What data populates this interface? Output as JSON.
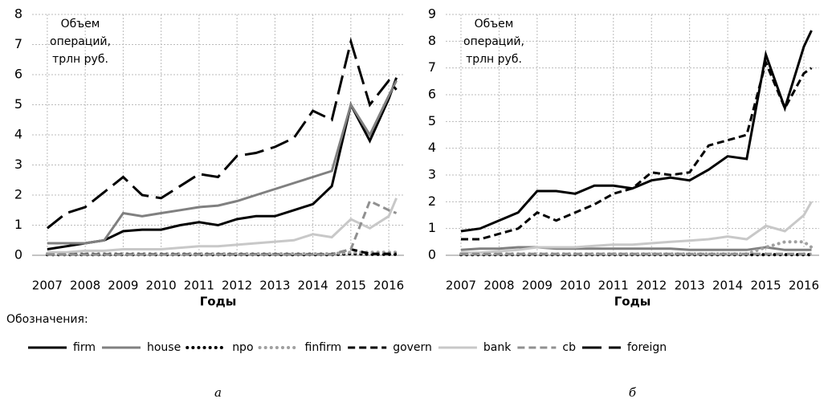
{
  "chart_data": [
    {
      "type": "line",
      "label": "а",
      "annotation": [
        "Объем",
        "операций,",
        "трлн руб."
      ],
      "x_label": "Годы",
      "x": [
        2007,
        2007.5,
        2008,
        2008.5,
        2009,
        2009.5,
        2010,
        2010.5,
        2011,
        2011.5,
        2012,
        2012.5,
        2013,
        2013.5,
        2014,
        2014.5,
        2015,
        2015.5,
        2016,
        2016.2
      ],
      "xlim": [
        2006.6,
        2016.4
      ],
      "xticks": [
        2007,
        2008,
        2009,
        2010,
        2011,
        2012,
        2013,
        2014,
        2015,
        2016
      ],
      "ylim": [
        0,
        8
      ],
      "yticks": [
        0,
        1,
        2,
        3,
        4,
        5,
        6,
        7,
        8
      ],
      "grid": true,
      "legend_title": "Обозначения:",
      "series": [
        {
          "name": "firm",
          "color": "#000000",
          "style": "solid",
          "values": [
            0.2,
            0.3,
            0.4,
            0.5,
            0.8,
            0.85,
            0.85,
            1.0,
            1.1,
            1.0,
            1.2,
            1.3,
            1.3,
            1.5,
            1.7,
            2.3,
            5.0,
            3.8,
            5.2,
            5.9
          ]
        },
        {
          "name": "house",
          "color": "#808080",
          "style": "solid",
          "values": [
            0.4,
            0.4,
            0.4,
            0.5,
            1.4,
            1.3,
            1.4,
            1.5,
            1.6,
            1.65,
            1.8,
            2.0,
            2.2,
            2.4,
            2.6,
            2.8,
            5.0,
            4.0,
            5.3,
            5.8
          ]
        },
        {
          "name": "npo",
          "color": "#000000",
          "style": "dotted",
          "values": [
            0.02,
            0.02,
            0.02,
            0.02,
            0.02,
            0.02,
            0.02,
            0.02,
            0.02,
            0.02,
            0.02,
            0.02,
            0.02,
            0.02,
            0.02,
            0.02,
            0.05,
            0.03,
            0.03,
            0.03
          ]
        },
        {
          "name": "finfirm",
          "color": "#a0a0a0",
          "style": "dotted",
          "values": [
            0.05,
            0.05,
            0.05,
            0.05,
            0.05,
            0.05,
            0.05,
            0.05,
            0.05,
            0.05,
            0.05,
            0.05,
            0.05,
            0.05,
            0.05,
            0.05,
            0.1,
            0.1,
            0.1,
            0.1
          ]
        },
        {
          "name": "govern",
          "color": "#000000",
          "style": "dashed",
          "values": [
            0.03,
            0.03,
            0.03,
            0.03,
            0.03,
            0.03,
            0.03,
            0.03,
            0.03,
            0.03,
            0.03,
            0.03,
            0.03,
            0.03,
            0.03,
            0.03,
            0.2,
            0.05,
            0.05,
            0.05
          ]
        },
        {
          "name": "bank",
          "color": "#c8c8c8",
          "style": "solid",
          "values": [
            0.1,
            0.1,
            0.15,
            0.15,
            0.2,
            0.2,
            0.2,
            0.25,
            0.3,
            0.3,
            0.35,
            0.4,
            0.45,
            0.5,
            0.7,
            0.6,
            1.2,
            0.9,
            1.3,
            1.9
          ]
        },
        {
          "name": "cb",
          "color": "#909090",
          "style": "dashed",
          "values": [
            0.02,
            0.02,
            0.02,
            0.02,
            0.02,
            0.02,
            0.02,
            0.02,
            0.02,
            0.02,
            0.02,
            0.02,
            0.02,
            0.02,
            0.02,
            0.02,
            0.2,
            1.8,
            1.5,
            1.4
          ]
        },
        {
          "name": "foreign",
          "color": "#000000",
          "style": "longdash",
          "values": [
            0.9,
            1.4,
            1.6,
            2.1,
            2.6,
            2.0,
            1.9,
            2.3,
            2.7,
            2.6,
            3.3,
            3.4,
            3.6,
            3.9,
            4.8,
            4.5,
            7.1,
            5.0,
            5.8,
            5.5
          ]
        }
      ]
    },
    {
      "type": "line",
      "label": "б",
      "annotation": [
        "Объем",
        "операций,",
        "трлн руб."
      ],
      "x_label": "Годы",
      "x": [
        2007,
        2007.5,
        2008,
        2008.5,
        2009,
        2009.5,
        2010,
        2010.5,
        2011,
        2011.5,
        2012,
        2012.5,
        2013,
        2013.5,
        2014,
        2014.5,
        2015,
        2015.5,
        2016,
        2016.2
      ],
      "xlim": [
        2006.6,
        2016.4
      ],
      "xticks": [
        2007,
        2008,
        2009,
        2010,
        2011,
        2012,
        2013,
        2014,
        2015,
        2016
      ],
      "ylim": [
        0,
        9
      ],
      "yticks": [
        0,
        1,
        2,
        3,
        4,
        5,
        6,
        7,
        8,
        9
      ],
      "grid": true,
      "series": [
        {
          "name": "firm",
          "color": "#000000",
          "style": "solid",
          "values": [
            0.9,
            1.0,
            1.3,
            1.6,
            2.4,
            2.4,
            2.3,
            2.6,
            2.6,
            2.5,
            2.8,
            2.9,
            2.8,
            3.2,
            3.7,
            3.6,
            7.5,
            5.5,
            7.8,
            8.4
          ]
        },
        {
          "name": "house",
          "color": "#808080",
          "style": "solid",
          "values": [
            0.2,
            0.25,
            0.25,
            0.3,
            0.3,
            0.25,
            0.25,
            0.25,
            0.25,
            0.25,
            0.25,
            0.25,
            0.2,
            0.2,
            0.2,
            0.2,
            0.3,
            0.2,
            0.2,
            0.2
          ]
        },
        {
          "name": "npo",
          "color": "#000000",
          "style": "dotted",
          "values": [
            0.02,
            0.02,
            0.02,
            0.02,
            0.02,
            0.02,
            0.02,
            0.02,
            0.02,
            0.02,
            0.02,
            0.02,
            0.02,
            0.02,
            0.02,
            0.02,
            0.02,
            0.02,
            0.02,
            0.02
          ]
        },
        {
          "name": "finfirm",
          "color": "#a0a0a0",
          "style": "dotted",
          "values": [
            0.05,
            0.05,
            0.05,
            0.05,
            0.05,
            0.05,
            0.05,
            0.05,
            0.05,
            0.05,
            0.05,
            0.05,
            0.05,
            0.05,
            0.05,
            0.05,
            0.3,
            0.5,
            0.5,
            0.3
          ]
        },
        {
          "name": "govern",
          "color": "#000000",
          "style": "dashed",
          "values": [
            0.6,
            0.6,
            0.8,
            1.0,
            1.6,
            1.3,
            1.6,
            1.9,
            2.3,
            2.5,
            3.1,
            3.0,
            3.1,
            4.1,
            4.3,
            4.5,
            7.2,
            5.5,
            6.8,
            7.0
          ]
        },
        {
          "name": "bank",
          "color": "#c8c8c8",
          "style": "solid",
          "values": [
            0.1,
            0.1,
            0.15,
            0.2,
            0.3,
            0.3,
            0.3,
            0.35,
            0.4,
            0.4,
            0.45,
            0.5,
            0.55,
            0.6,
            0.7,
            0.6,
            1.1,
            0.9,
            1.5,
            2.0
          ]
        },
        {
          "name": "cb",
          "color": "#909090",
          "style": "dashed",
          "values": [
            0.05,
            0.05,
            0.05,
            0.05,
            0.05,
            0.05,
            0.05,
            0.05,
            0.05,
            0.05,
            0.05,
            0.05,
            0.05,
            0.05,
            0.05,
            0.05,
            0.05,
            0.05,
            0.05,
            0.05
          ]
        }
      ]
    }
  ]
}
